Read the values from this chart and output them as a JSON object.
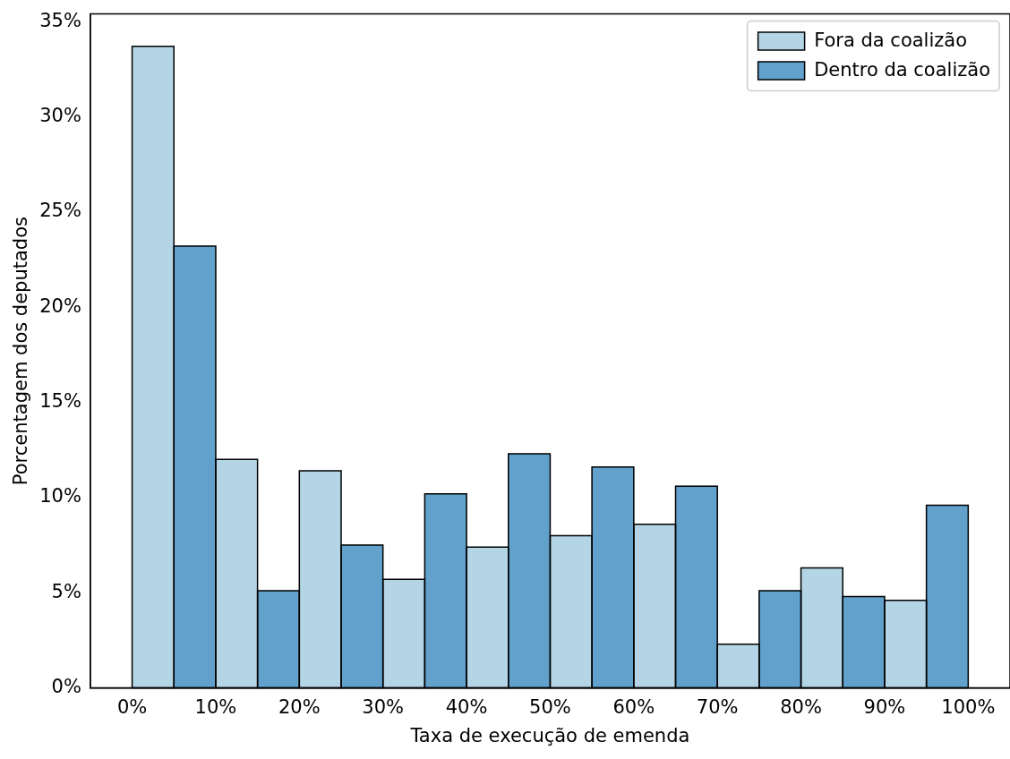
{
  "chart_data": {
    "type": "histogram",
    "xlabel": "Taxa de execução de emenda",
    "ylabel": "Porcentagem dos deputados",
    "bins": [
      0,
      10,
      20,
      30,
      40,
      50,
      60,
      70,
      80,
      90,
      100
    ],
    "series": [
      {
        "name": "Fora da coalizão",
        "color": "#b4d5e6",
        "values": [
          33.7,
          12.0,
          11.4,
          5.7,
          7.4,
          8.0,
          8.6,
          2.3,
          6.3,
          4.6
        ]
      },
      {
        "name": "Dentro da coalizão",
        "color": "#62a1cb",
        "values": [
          23.2,
          5.1,
          7.5,
          10.2,
          12.3,
          11.6,
          10.6,
          5.1,
          4.8,
          9.6
        ]
      }
    ],
    "xlim": [
      -5,
      105
    ],
    "xticks": [
      {
        "value": 0,
        "label": "0%"
      },
      {
        "value": 10,
        "label": "10%"
      },
      {
        "value": 20,
        "label": "20%"
      },
      {
        "value": 30,
        "label": "30%"
      },
      {
        "value": 40,
        "label": "40%"
      },
      {
        "value": 50,
        "label": "50%"
      },
      {
        "value": 60,
        "label": "60%"
      },
      {
        "value": 70,
        "label": "70%"
      },
      {
        "value": 80,
        "label": "80%"
      },
      {
        "value": 90,
        "label": "90%"
      },
      {
        "value": 100,
        "label": "100%"
      }
    ],
    "ylim": [
      0,
      35.4
    ],
    "yticks": [
      {
        "value": 0,
        "label": "0%"
      },
      {
        "value": 5,
        "label": "5%"
      },
      {
        "value": 10,
        "label": "10%"
      },
      {
        "value": 15,
        "label": "15%"
      },
      {
        "value": 20,
        "label": "20%"
      },
      {
        "value": 25,
        "label": "25%"
      },
      {
        "value": 30,
        "label": "30%"
      },
      {
        "value": 35,
        "label": "35%"
      }
    ],
    "legend": "top right",
    "grid": false
  }
}
